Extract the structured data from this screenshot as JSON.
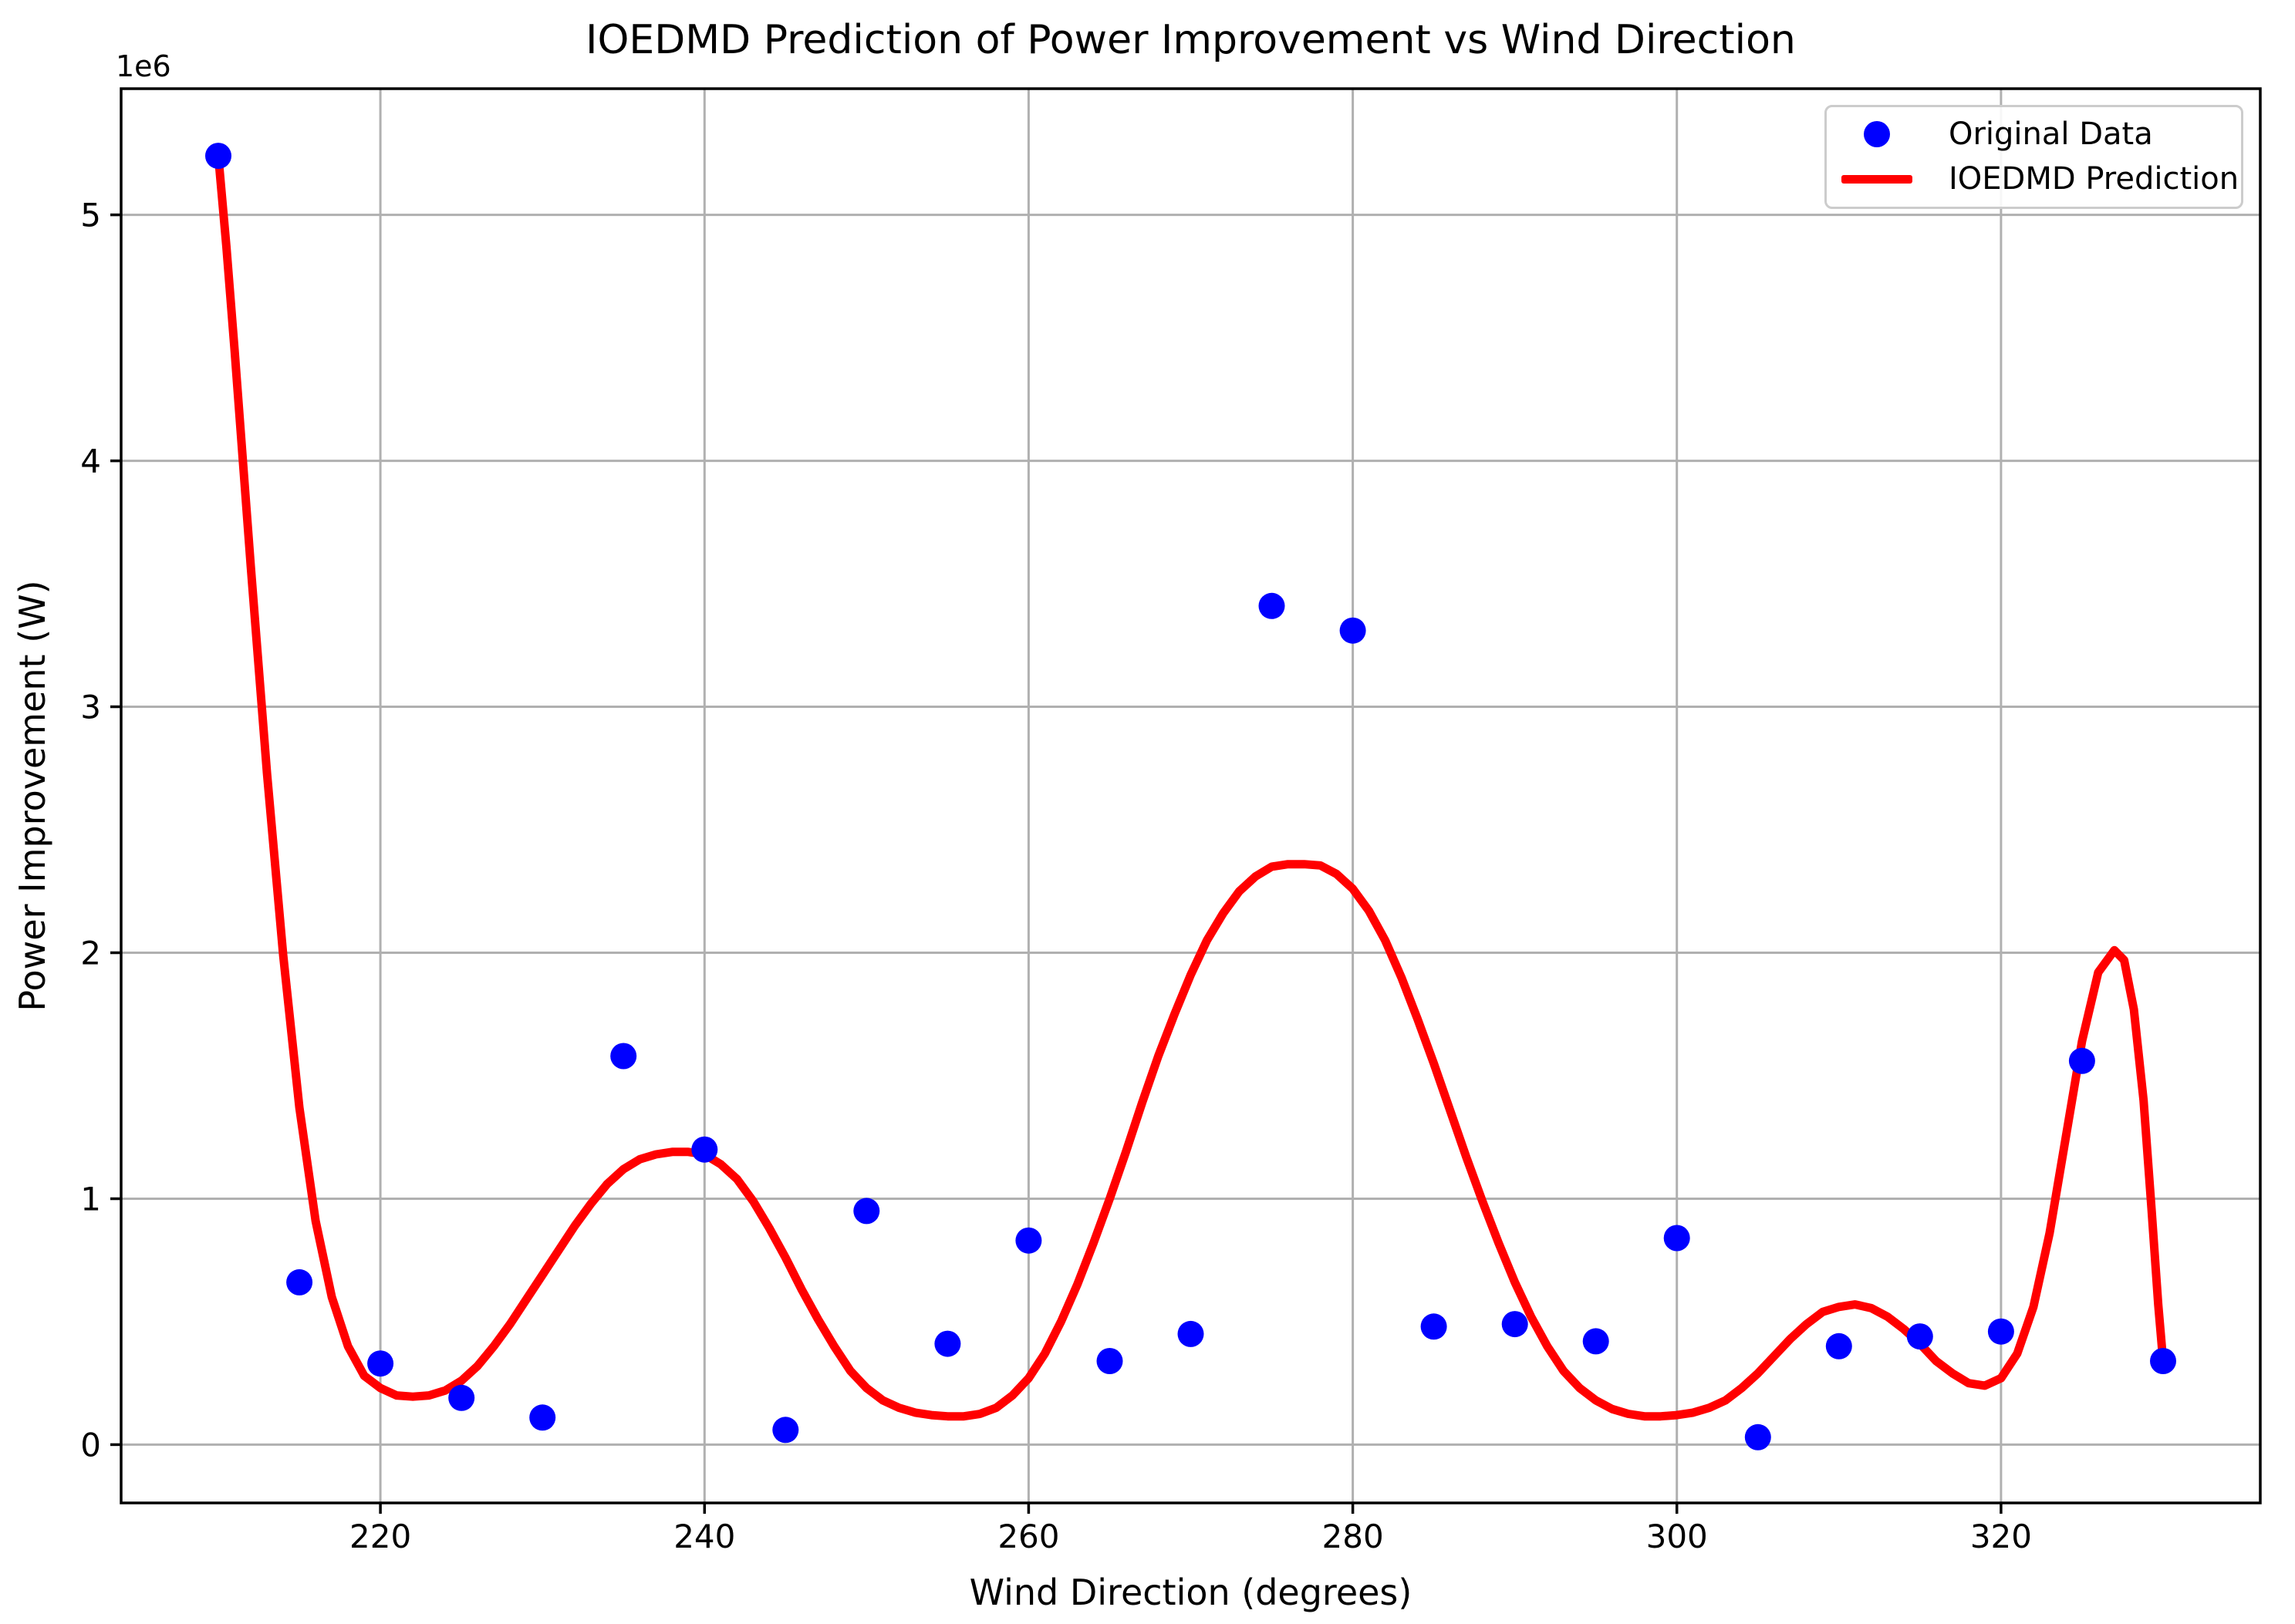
{
  "chart_data": {
    "type": "scatter",
    "title": "IOEDMD Prediction of Power Improvement vs Wind Direction",
    "xlabel": "Wind Direction (degrees)",
    "ylabel": "Power Improvement (W)",
    "y_offset_text": "1e6",
    "xlim": [
      204,
      336
    ],
    "ylim": [
      -237000,
      5513000
    ],
    "xticks": [
      220,
      240,
      260,
      280,
      300,
      320
    ],
    "xtick_labels": [
      "220",
      "240",
      "260",
      "280",
      "300",
      "320"
    ],
    "yticks": [
      0,
      1000000,
      2000000,
      3000000,
      4000000,
      5000000
    ],
    "ytick_labels": [
      "0",
      "1",
      "2",
      "3",
      "4",
      "5"
    ],
    "grid": true,
    "grid_color": "#b0b0b0",
    "legend": {
      "position": "upper right",
      "entries": [
        {
          "label": "Original Data",
          "marker": "dot",
          "color": "#0000ff"
        },
        {
          "label": "IOEDMD Prediction",
          "marker": "line",
          "color": "#ff0000"
        }
      ]
    },
    "series": [
      {
        "name": "Original Data",
        "type": "scatter",
        "color": "#0000ff",
        "points": [
          [
            210,
            5240000
          ],
          [
            215,
            660000
          ],
          [
            220,
            330000
          ],
          [
            225,
            190000
          ],
          [
            230,
            110000
          ],
          [
            235,
            1580000
          ],
          [
            240,
            1200000
          ],
          [
            245,
            60000
          ],
          [
            250,
            950000
          ],
          [
            255,
            410000
          ],
          [
            260,
            830000
          ],
          [
            265,
            340000
          ],
          [
            270,
            450000
          ],
          [
            275,
            3410000
          ],
          [
            280,
            3310000
          ],
          [
            285,
            480000
          ],
          [
            290,
            490000
          ],
          [
            295,
            420000
          ],
          [
            300,
            840000
          ],
          [
            305,
            30000
          ],
          [
            310,
            400000
          ],
          [
            315,
            440000
          ],
          [
            320,
            460000
          ],
          [
            325,
            1560000
          ],
          [
            330,
            340000
          ]
        ]
      },
      {
        "name": "IOEDMD Prediction",
        "type": "line",
        "color": "#ff0000",
        "points": [
          [
            210,
            5240000
          ],
          [
            210.5,
            4870000
          ],
          [
            211,
            4450000
          ],
          [
            212,
            3570000
          ],
          [
            213,
            2730000
          ],
          [
            214,
            1990000
          ],
          [
            215,
            1370000
          ],
          [
            216,
            910000
          ],
          [
            217,
            600000
          ],
          [
            218,
            400000
          ],
          [
            219,
            280000
          ],
          [
            220,
            230000
          ],
          [
            221,
            200000
          ],
          [
            222,
            195000
          ],
          [
            223,
            200000
          ],
          [
            224,
            220000
          ],
          [
            225,
            260000
          ],
          [
            226,
            320000
          ],
          [
            227,
            400000
          ],
          [
            228,
            490000
          ],
          [
            229,
            590000
          ],
          [
            230,
            690000
          ],
          [
            231,
            790000
          ],
          [
            232,
            890000
          ],
          [
            233,
            980000
          ],
          [
            234,
            1060000
          ],
          [
            235,
            1120000
          ],
          [
            236,
            1160000
          ],
          [
            237,
            1180000
          ],
          [
            238,
            1190000
          ],
          [
            239,
            1190000
          ],
          [
            240,
            1180000
          ],
          [
            241,
            1140000
          ],
          [
            242,
            1080000
          ],
          [
            243,
            990000
          ],
          [
            244,
            880000
          ],
          [
            245,
            760000
          ],
          [
            246,
            630000
          ],
          [
            247,
            510000
          ],
          [
            248,
            400000
          ],
          [
            249,
            300000
          ],
          [
            250,
            230000
          ],
          [
            251,
            180000
          ],
          [
            252,
            150000
          ],
          [
            253,
            130000
          ],
          [
            254,
            120000
          ],
          [
            255,
            115000
          ],
          [
            256,
            115000
          ],
          [
            257,
            125000
          ],
          [
            258,
            150000
          ],
          [
            259,
            200000
          ],
          [
            260,
            270000
          ],
          [
            261,
            370000
          ],
          [
            262,
            500000
          ],
          [
            263,
            650000
          ],
          [
            264,
            820000
          ],
          [
            265,
            1000000
          ],
          [
            266,
            1190000
          ],
          [
            267,
            1390000
          ],
          [
            268,
            1580000
          ],
          [
            269,
            1750000
          ],
          [
            270,
            1910000
          ],
          [
            271,
            2050000
          ],
          [
            272,
            2160000
          ],
          [
            273,
            2250000
          ],
          [
            274,
            2310000
          ],
          [
            275,
            2350000
          ],
          [
            276,
            2360000
          ],
          [
            277,
            2360000
          ],
          [
            278,
            2355000
          ],
          [
            279,
            2320000
          ],
          [
            280,
            2260000
          ],
          [
            281,
            2170000
          ],
          [
            282,
            2050000
          ],
          [
            283,
            1900000
          ],
          [
            284,
            1730000
          ],
          [
            285,
            1550000
          ],
          [
            286,
            1360000
          ],
          [
            287,
            1170000
          ],
          [
            288,
            990000
          ],
          [
            289,
            820000
          ],
          [
            290,
            660000
          ],
          [
            291,
            520000
          ],
          [
            292,
            400000
          ],
          [
            293,
            300000
          ],
          [
            294,
            230000
          ],
          [
            295,
            180000
          ],
          [
            296,
            145000
          ],
          [
            297,
            125000
          ],
          [
            298,
            115000
          ],
          [
            299,
            115000
          ],
          [
            300,
            120000
          ],
          [
            301,
            130000
          ],
          [
            302,
            150000
          ],
          [
            303,
            180000
          ],
          [
            304,
            230000
          ],
          [
            305,
            290000
          ],
          [
            306,
            360000
          ],
          [
            307,
            430000
          ],
          [
            308,
            490000
          ],
          [
            309,
            540000
          ],
          [
            310,
            560000
          ],
          [
            311,
            570000
          ],
          [
            312,
            555000
          ],
          [
            313,
            520000
          ],
          [
            314,
            470000
          ],
          [
            315,
            410000
          ],
          [
            316,
            340000
          ],
          [
            317,
            290000
          ],
          [
            318,
            250000
          ],
          [
            319,
            240000
          ],
          [
            320,
            270000
          ],
          [
            321,
            370000
          ],
          [
            322,
            560000
          ],
          [
            323,
            860000
          ],
          [
            324,
            1250000
          ],
          [
            325,
            1640000
          ],
          [
            326,
            1920000
          ],
          [
            327,
            2010000
          ],
          [
            327.6,
            1970000
          ],
          [
            328.2,
            1770000
          ],
          [
            328.8,
            1400000
          ],
          [
            329.3,
            950000
          ],
          [
            329.7,
            570000
          ],
          [
            330,
            340000
          ]
        ]
      }
    ]
  },
  "colors": {
    "scatter": "#0000ff",
    "line": "#ff0000",
    "grid": "#b0b0b0",
    "spine": "#000000",
    "background": "#ffffff",
    "legend_border": "#cccccc"
  }
}
